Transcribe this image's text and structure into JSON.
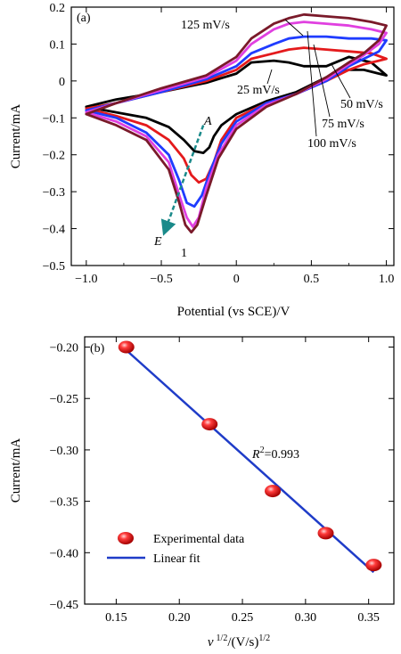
{
  "chart_data": [
    {
      "type": "line",
      "panel_label": "(a)",
      "xlabel": "Potential (vs SCE)/V",
      "ylabel": "Current/mA",
      "xlim": [
        -1.1,
        1.05
      ],
      "ylim": [
        -0.5,
        0.2
      ],
      "xticks": [
        -1.0,
        -0.5,
        0,
        0.5,
        1.0
      ],
      "xtick_labels": [
        "-1.0",
        "-0.5",
        "0",
        "0.5",
        "1.0"
      ],
      "yticks": [
        -0.5,
        -0.4,
        -0.3,
        -0.2,
        -0.1,
        0,
        0.1,
        0.2
      ],
      "ytick_labels": [
        "-0.5",
        "-0.4",
        "-0.3",
        "-0.2",
        "-0.1",
        "0",
        "0.1",
        "0.2"
      ],
      "series": [
        {
          "name": "25 mV/s",
          "color": "#000000",
          "x": [
            -1.0,
            -0.8,
            -0.6,
            -0.45,
            -0.35,
            -0.28,
            -0.22,
            -0.18,
            -0.15,
            -0.1,
            0.0,
            0.2,
            0.4,
            0.6,
            0.75,
            0.85,
            0.95,
            1.0,
            0.9,
            0.75,
            0.6,
            0.45,
            0.35,
            0.25,
            0.1,
            0.0,
            -0.2,
            -0.5,
            -0.8,
            -1.0
          ],
          "y": [
            -0.07,
            -0.085,
            -0.1,
            -0.125,
            -0.16,
            -0.19,
            -0.195,
            -0.18,
            -0.15,
            -0.12,
            -0.09,
            -0.055,
            -0.03,
            0.01,
            0.03,
            0.03,
            0.02,
            0.015,
            0.05,
            0.065,
            0.04,
            0.04,
            0.05,
            0.055,
            0.05,
            0.02,
            -0.005,
            -0.03,
            -0.05,
            -0.07
          ]
        },
        {
          "name": "50 mV/s",
          "color": "#e41a1c",
          "x": [
            -1.0,
            -0.8,
            -0.6,
            -0.45,
            -0.35,
            -0.3,
            -0.25,
            -0.2,
            -0.15,
            -0.1,
            0.0,
            0.2,
            0.4,
            0.6,
            0.75,
            0.85,
            0.95,
            1.0,
            0.9,
            0.75,
            0.6,
            0.45,
            0.35,
            0.25,
            0.1,
            0.0,
            -0.2,
            -0.5,
            -0.8,
            -1.0
          ],
          "y": [
            -0.075,
            -0.095,
            -0.12,
            -0.16,
            -0.21,
            -0.255,
            -0.275,
            -0.265,
            -0.22,
            -0.16,
            -0.1,
            -0.06,
            -0.035,
            0.0,
            0.03,
            0.045,
            0.055,
            0.06,
            0.075,
            0.08,
            0.085,
            0.09,
            0.085,
            0.075,
            0.06,
            0.03,
            0.0,
            -0.03,
            -0.06,
            -0.075
          ]
        },
        {
          "name": "75 mV/s",
          "color": "#1f3cff",
          "x": [
            -1.0,
            -0.8,
            -0.6,
            -0.45,
            -0.38,
            -0.33,
            -0.28,
            -0.23,
            -0.17,
            -0.1,
            0.0,
            0.2,
            0.4,
            0.6,
            0.75,
            0.85,
            0.95,
            1.0,
            0.9,
            0.75,
            0.6,
            0.45,
            0.35,
            0.25,
            0.1,
            0.0,
            -0.2,
            -0.5,
            -0.8,
            -1.0
          ],
          "y": [
            -0.08,
            -0.1,
            -0.14,
            -0.2,
            -0.27,
            -0.33,
            -0.34,
            -0.31,
            -0.24,
            -0.17,
            -0.11,
            -0.06,
            -0.035,
            0.0,
            0.04,
            0.06,
            0.08,
            0.11,
            0.115,
            0.115,
            0.12,
            0.12,
            0.115,
            0.1,
            0.075,
            0.04,
            0.005,
            -0.03,
            -0.06,
            -0.08
          ]
        },
        {
          "name": "100 mV/s",
          "color": "#e040e0",
          "x": [
            -1.0,
            -0.8,
            -0.6,
            -0.45,
            -0.38,
            -0.33,
            -0.29,
            -0.25,
            -0.2,
            -0.12,
            0.0,
            0.2,
            0.4,
            0.6,
            0.75,
            0.85,
            0.95,
            1.0,
            0.9,
            0.75,
            0.6,
            0.45,
            0.35,
            0.25,
            0.1,
            0.0,
            -0.2,
            -0.5,
            -0.8,
            -1.0
          ],
          "y": [
            -0.085,
            -0.11,
            -0.15,
            -0.22,
            -0.31,
            -0.37,
            -0.395,
            -0.37,
            -0.29,
            -0.2,
            -0.12,
            -0.065,
            -0.035,
            0.005,
            0.045,
            0.07,
            0.1,
            0.13,
            0.14,
            0.15,
            0.155,
            0.16,
            0.155,
            0.14,
            0.1,
            0.055,
            0.01,
            -0.025,
            -0.06,
            -0.085
          ]
        },
        {
          "name": "125 mV/s",
          "color": "#7a1a2a",
          "x": [
            -1.0,
            -0.8,
            -0.6,
            -0.45,
            -0.38,
            -0.34,
            -0.3,
            -0.26,
            -0.2,
            -0.12,
            0.0,
            0.2,
            0.4,
            0.6,
            0.75,
            0.85,
            0.95,
            1.0,
            0.9,
            0.75,
            0.6,
            0.45,
            0.35,
            0.25,
            0.1,
            0.0,
            -0.2,
            -0.5,
            -0.8,
            -1.0
          ],
          "y": [
            -0.09,
            -0.12,
            -0.16,
            -0.24,
            -0.33,
            -0.39,
            -0.41,
            -0.39,
            -0.31,
            -0.21,
            -0.13,
            -0.07,
            -0.035,
            0.01,
            0.05,
            0.075,
            0.11,
            0.15,
            0.16,
            0.17,
            0.175,
            0.18,
            0.17,
            0.155,
            0.115,
            0.065,
            0.015,
            -0.02,
            -0.06,
            -0.09
          ]
        }
      ],
      "curve_labels": [
        "125 mV/s",
        "25 mV/s",
        "50 mV/s",
        "75 mV/s",
        "100 mV/s"
      ],
      "annotations": {
        "arrow_start_label": "A",
        "arrow_end_label": "E",
        "peak_label": "1",
        "arrow_start": [
          -0.22,
          -0.12
        ],
        "arrow_end": [
          -0.47,
          -0.4
        ]
      }
    },
    {
      "type": "scatter",
      "panel_label": "(b)",
      "xlabel_symbol": "v",
      "xlabel_sup1": "1/2",
      "xlabel_mid": "/(V/s)",
      "xlabel_sup2": "1/2",
      "ylabel": "Current/mA",
      "xlim": [
        0.125,
        0.37
      ],
      "ylim": [
        -0.45,
        -0.19
      ],
      "xticks": [
        0.15,
        0.2,
        0.25,
        0.3,
        0.35
      ],
      "xtick_labels": [
        "0.15",
        "0.20",
        "0.25",
        "0.30",
        "0.35"
      ],
      "yticks": [
        -0.2,
        -0.25,
        -0.3,
        -0.35,
        -0.4,
        -0.45
      ],
      "ytick_labels": [
        "-0.20",
        "-0.25",
        "-0.30",
        "-0.35",
        "-0.40",
        "-0.45"
      ],
      "series": [
        {
          "name": "Experimental data",
          "color": "#e41a1c",
          "x": [
            0.158,
            0.224,
            0.274,
            0.316,
            0.354
          ],
          "y": [
            -0.2,
            -0.275,
            -0.34,
            -0.381,
            -0.412
          ]
        },
        {
          "name": "Linear fit",
          "color": "#1f3cc8",
          "x": [
            0.158,
            0.354
          ],
          "y": [
            -0.203,
            -0.419
          ]
        }
      ],
      "r2_label_main": "R",
      "r2_label_sup": "2",
      "r2_label_value": "=0.993"
    }
  ]
}
